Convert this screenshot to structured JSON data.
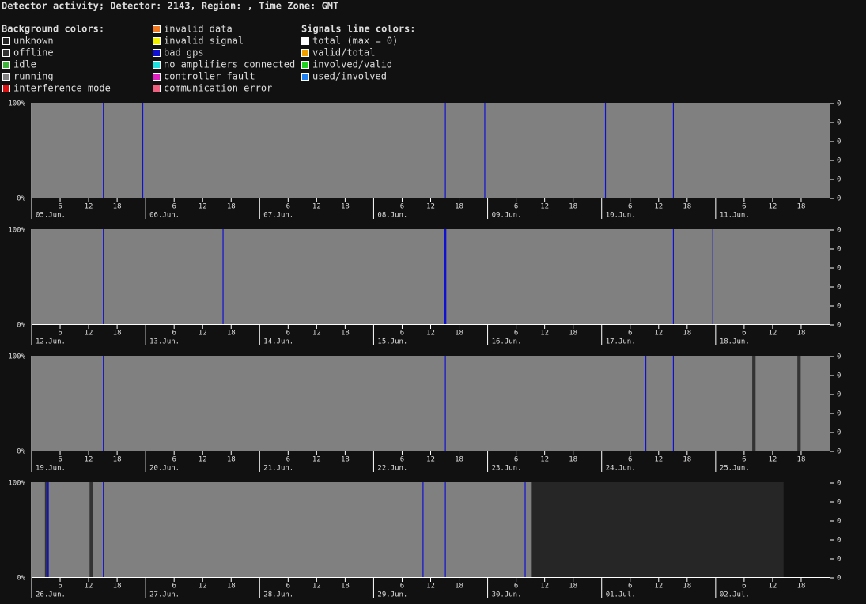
{
  "header": {
    "title": "Detector activity; Detector: 2143, Region: , Time Zone: GMT"
  },
  "legend": {
    "background": {
      "title": "Background colors:",
      "items": [
        {
          "label": "unknown",
          "color": "#262626"
        },
        {
          "label": "offline",
          "color": "#333333"
        },
        {
          "label": "idle",
          "color": "#3cb43c"
        },
        {
          "label": "running",
          "color": "#808080"
        },
        {
          "label": "interference mode",
          "color": "#e01010"
        }
      ]
    },
    "flags": {
      "items": [
        {
          "label": "invalid data",
          "color": "#f07820"
        },
        {
          "label": "invalid signal",
          "color": "#f0f000"
        },
        {
          "label": "bad gps",
          "color": "#1010d0"
        },
        {
          "label": "no amplifiers connected",
          "color": "#20e0e0"
        },
        {
          "label": "controller fault",
          "color": "#e020c0"
        },
        {
          "label": "communication error",
          "color": "#f06080"
        }
      ]
    },
    "signals": {
      "title": "Signals line colors:",
      "items": [
        {
          "label": "total (max = 0)",
          "color": "#ffffff"
        },
        {
          "label": "valid/total",
          "color": "#f0a000"
        },
        {
          "label": "involved/valid",
          "color": "#20d020"
        },
        {
          "label": "used/involved",
          "color": "#2080f0"
        }
      ]
    }
  },
  "axes": {
    "left_labels": [
      "100%",
      "0%"
    ],
    "right_labels": [
      "0",
      "0",
      "0",
      "0",
      "0",
      "0"
    ],
    "hour_ticks": [
      6,
      12,
      18
    ],
    "hours_per_panel": 168
  },
  "panels": [
    {
      "days": [
        "05.Jun.",
        "06.Jun.",
        "07.Jun.",
        "08.Jun.",
        "09.Jun.",
        "10.Jun.",
        "11.Jun."
      ],
      "intervals": [
        {
          "start": 0,
          "end": 168,
          "color": "#808080"
        },
        {
          "start": 15,
          "end": 15.2,
          "color": "#1010d0"
        },
        {
          "start": 23.3,
          "end": 23.5,
          "color": "#1010d0"
        },
        {
          "start": 87,
          "end": 87.2,
          "color": "#1010d0"
        },
        {
          "start": 95.3,
          "end": 95.5,
          "color": "#1010d0"
        },
        {
          "start": 120.7,
          "end": 120.9,
          "color": "#1010d0"
        },
        {
          "start": 135,
          "end": 135.2,
          "color": "#1010d0"
        }
      ]
    },
    {
      "days": [
        "12.Jun.",
        "13.Jun.",
        "14.Jun.",
        "15.Jun.",
        "16.Jun.",
        "17.Jun.",
        "18.Jun."
      ],
      "intervals": [
        {
          "start": 0,
          "end": 168,
          "color": "#808080"
        },
        {
          "start": 15,
          "end": 15.2,
          "color": "#1010d0"
        },
        {
          "start": 40.2,
          "end": 40.4,
          "color": "#1010d0"
        },
        {
          "start": 86.8,
          "end": 87.3,
          "color": "#1010d0"
        },
        {
          "start": 135,
          "end": 135.2,
          "color": "#1010d0"
        },
        {
          "start": 143.3,
          "end": 143.5,
          "color": "#1010d0"
        }
      ]
    },
    {
      "days": [
        "19.Jun.",
        "20.Jun.",
        "21.Jun.",
        "22.Jun.",
        "23.Jun.",
        "24.Jun.",
        "25.Jun."
      ],
      "intervals": [
        {
          "start": 0,
          "end": 168,
          "color": "#808080"
        },
        {
          "start": 15,
          "end": 15.2,
          "color": "#1010d0"
        },
        {
          "start": 87,
          "end": 87.2,
          "color": "#1010d0"
        },
        {
          "start": 129.2,
          "end": 129.4,
          "color": "#1010d0"
        },
        {
          "start": 135,
          "end": 135.2,
          "color": "#1010d0"
        },
        {
          "start": 151.7,
          "end": 152.4,
          "color": "#333333"
        },
        {
          "start": 161.2,
          "end": 161.9,
          "color": "#333333"
        }
      ]
    },
    {
      "days": [
        "26.Jun.",
        "27.Jun.",
        "28.Jun.",
        "29.Jun.",
        "30.Jun.",
        "01.Jul.",
        "02.Jul."
      ],
      "intervals": [
        {
          "start": 0,
          "end": 105.3,
          "color": "#808080"
        },
        {
          "start": 2.8,
          "end": 3.6,
          "color": "#333333"
        },
        {
          "start": 3.3,
          "end": 3.6,
          "color": "#1010d0"
        },
        {
          "start": 12.2,
          "end": 12.9,
          "color": "#333333"
        },
        {
          "start": 15,
          "end": 15.2,
          "color": "#1010d0"
        },
        {
          "start": 82.3,
          "end": 82.5,
          "color": "#1010d0"
        },
        {
          "start": 87,
          "end": 87.2,
          "color": "#1010d0"
        },
        {
          "start": 103.8,
          "end": 104,
          "color": "#1010d0"
        },
        {
          "start": 105.3,
          "end": 158.3,
          "color": "#262626"
        }
      ]
    }
  ]
}
